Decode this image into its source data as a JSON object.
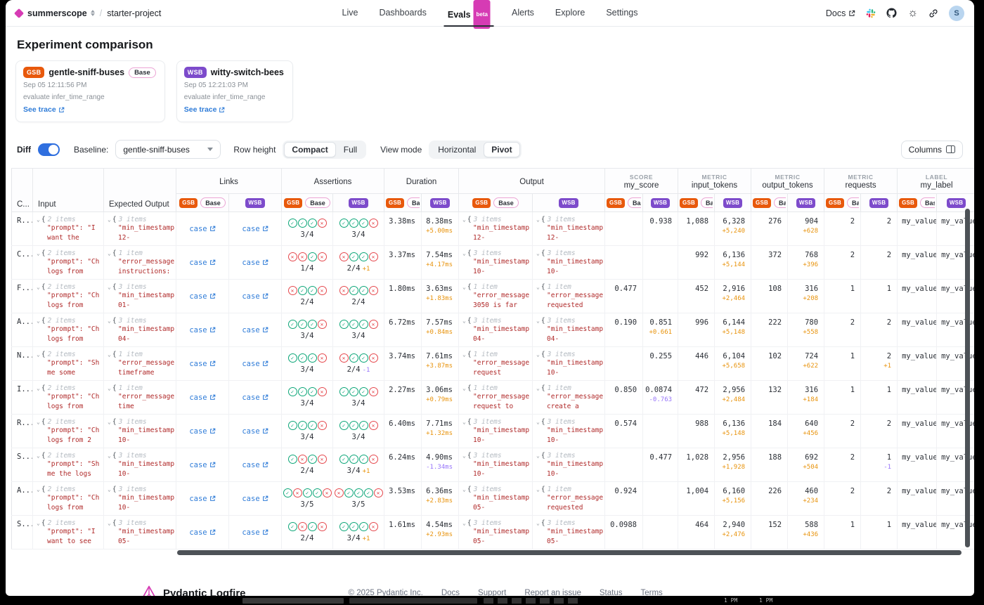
{
  "nav": {
    "org": "summerscope",
    "project": "starter-project",
    "items": [
      {
        "label": "Live"
      },
      {
        "label": "Dashboards"
      },
      {
        "label": "Evals",
        "badge": "beta",
        "active": true
      },
      {
        "label": "Alerts"
      },
      {
        "label": "Explore"
      },
      {
        "label": "Settings"
      }
    ],
    "docs_label": "Docs",
    "avatar": "S"
  },
  "page_title": "Experiment comparison",
  "experiments": [
    {
      "abbr": "GSB",
      "name": "gentle-sniff-buses",
      "base_label": "Base",
      "timestamp": "Sep 05 12:11:56 PM",
      "task": "evaluate infer_time_range",
      "trace_link": "See trace"
    },
    {
      "abbr": "WSB",
      "name": "witty-switch-bees",
      "timestamp": "Sep 05 12:21:03 PM",
      "task": "evaluate infer_time_range",
      "trace_link": "See trace"
    }
  ],
  "controls": {
    "diff_label": "Diff",
    "diff_on": true,
    "baseline_label": "Baseline:",
    "baseline_value": "gentle-sniff-buses",
    "row_height_label": "Row height",
    "row_height_options": [
      "Compact",
      "Full"
    ],
    "row_height_selected": "Compact",
    "view_mode_label": "View mode",
    "view_mode_options": [
      "Horizontal",
      "Pivot"
    ],
    "view_mode_selected": "Pivot",
    "columns_button": "Columns"
  },
  "table": {
    "badges": {
      "gsb": "GSB",
      "wsb": "WSB",
      "base": "Base"
    },
    "fixed_columns": [
      "C...",
      "Input",
      "Expected Output"
    ],
    "groups": [
      {
        "label": "Links",
        "clip": false
      },
      {
        "label": "Assertions",
        "clip": false
      },
      {
        "label": "Duration",
        "clip": true
      },
      {
        "label": "Output",
        "clip": false
      },
      {
        "kicker": "SCORE",
        "label": "my_score",
        "clip": true
      },
      {
        "kicker": "METRIC",
        "label": "input_tokens",
        "clip": true
      },
      {
        "kicker": "METRIC",
        "label": "output_tokens",
        "clip": true
      },
      {
        "kicker": "METRIC",
        "label": "requests",
        "clip": true
      },
      {
        "kicker": "LABEL",
        "label": "my_label",
        "clip": true
      }
    ],
    "link_text": "case",
    "rows": [
      {
        "case": "R...",
        "input": {
          "count": "2 items",
          "l1": "\"prompt\": \"I",
          "l2": "want the"
        },
        "expected": {
          "count": "3 items",
          "l1": "\"min_timestamp",
          "l2": "12-"
        },
        "asserts": {
          "g": "1110",
          "gs": "3/4",
          "gd": "",
          "w": "1110",
          "ws": "3/4",
          "wd": ""
        },
        "duration": {
          "gsb": "3.38ms",
          "wsb": "8.38ms",
          "delta": "+5.00ms"
        },
        "output_gsb": {
          "count": "3 items",
          "l1": "\"min_timestamp",
          "l2": "12-"
        },
        "output_wsb": {
          "count": "3 items",
          "l1": "\"min_timestamp",
          "l2": "12-"
        },
        "score": {
          "gsb": "",
          "wsb": "0.938",
          "delta": ""
        },
        "input_tokens": {
          "gsb": "1,088",
          "wsb": "6,328",
          "delta": "+5,240"
        },
        "output_tokens": {
          "gsb": "276",
          "wsb": "904",
          "delta": "+628"
        },
        "requests": {
          "gsb": "2",
          "wsb": "2",
          "delta": ""
        },
        "label": {
          "gsb": "my_value_",
          "wsb": "my_value_"
        }
      },
      {
        "case": "C...",
        "input": {
          "count": "2 items",
          "l1": "\"prompt\": \"Ch",
          "l2": "logs from"
        },
        "expected": {
          "count": "1 item",
          "l1": "\"error_message",
          "l2": "instructions:"
        },
        "asserts": {
          "g": "0010",
          "gs": "1/4",
          "gd": "",
          "w": "0110",
          "ws": "2/4",
          "wd": "+1"
        },
        "duration": {
          "gsb": "3.37ms",
          "wsb": "7.54ms",
          "delta": "+4.17ms"
        },
        "output_gsb": {
          "count": "3 items",
          "l1": "\"min_timestamp",
          "l2": "10-"
        },
        "output_wsb": {
          "count": "3 items",
          "l1": "\"min_timestamp",
          "l2": "10-"
        },
        "score": {
          "gsb": "",
          "wsb": "",
          "delta": ""
        },
        "input_tokens": {
          "gsb": "992",
          "wsb": "6,136",
          "delta": "+5,144"
        },
        "output_tokens": {
          "gsb": "372",
          "wsb": "768",
          "delta": "+396"
        },
        "requests": {
          "gsb": "2",
          "wsb": "2",
          "delta": ""
        },
        "label": {
          "gsb": "my_value_",
          "wsb": "my_value_"
        }
      },
      {
        "case": "F...",
        "input": {
          "count": "2 items",
          "l1": "\"prompt\": \"Ch",
          "l2": "logs from"
        },
        "expected": {
          "count": "3 items",
          "l1": "\"min_timestamp",
          "l2": "01-"
        },
        "asserts": {
          "g": "0110",
          "gs": "2/4",
          "gd": "",
          "w": "0110",
          "ws": "2/4",
          "wd": ""
        },
        "duration": {
          "gsb": "1.80ms",
          "wsb": "3.63ms",
          "delta": "+1.83ms"
        },
        "output_gsb": {
          "count": "1 item",
          "l1": "\"error_message",
          "l2": "3050 is far"
        },
        "output_wsb": {
          "count": "1 item",
          "l1": "\"error_message",
          "l2": "requested"
        },
        "score": {
          "gsb": "0.477",
          "wsb": "",
          "delta": ""
        },
        "input_tokens": {
          "gsb": "452",
          "wsb": "2,916",
          "delta": "+2,464"
        },
        "output_tokens": {
          "gsb": "108",
          "wsb": "316",
          "delta": "+208"
        },
        "requests": {
          "gsb": "1",
          "wsb": "1",
          "delta": ""
        },
        "label": {
          "gsb": "my_value_",
          "wsb": "my_value_"
        }
      },
      {
        "case": "A...",
        "input": {
          "count": "2 items",
          "l1": "\"prompt\": \"Ch",
          "l2": "logs from"
        },
        "expected": {
          "count": "3 items",
          "l1": "\"min_timestamp",
          "l2": "04-"
        },
        "asserts": {
          "g": "1110",
          "gs": "3/4",
          "gd": "",
          "w": "1110",
          "ws": "3/4",
          "wd": ""
        },
        "duration": {
          "gsb": "6.72ms",
          "wsb": "7.57ms",
          "delta": "+0.84ms"
        },
        "output_gsb": {
          "count": "3 items",
          "l1": "\"min_timestamp",
          "l2": "04-"
        },
        "output_wsb": {
          "count": "3 items",
          "l1": "\"min_timestamp",
          "l2": "04-"
        },
        "score": {
          "gsb": "0.190",
          "wsb": "0.851",
          "delta": "+0.661"
        },
        "input_tokens": {
          "gsb": "996",
          "wsb": "6,144",
          "delta": "+5,148"
        },
        "output_tokens": {
          "gsb": "222",
          "wsb": "780",
          "delta": "+558"
        },
        "requests": {
          "gsb": "2",
          "wsb": "2",
          "delta": ""
        },
        "label": {
          "gsb": "my_value_",
          "wsb": "my_value_"
        }
      },
      {
        "case": "N...",
        "input": {
          "count": "2 items",
          "l1": "\"prompt\": \"Sh",
          "l2": "me some"
        },
        "expected": {
          "count": "1 item",
          "l1": "\"error_message",
          "l2": "timeframe"
        },
        "asserts": {
          "g": "1110",
          "gs": "3/4",
          "gd": "",
          "w": "0110",
          "ws": "2/4",
          "wd": "-1"
        },
        "duration": {
          "gsb": "3.74ms",
          "wsb": "7.61ms",
          "delta": "+3.87ms"
        },
        "output_gsb": {
          "count": "1 item",
          "l1": "\"error_message",
          "l2": "request"
        },
        "output_wsb": {
          "count": "3 items",
          "l1": "\"min_timestamp",
          "l2": "10-"
        },
        "score": {
          "gsb": "",
          "wsb": "0.255",
          "delta": ""
        },
        "input_tokens": {
          "gsb": "446",
          "wsb": "6,104",
          "delta": "+5,658"
        },
        "output_tokens": {
          "gsb": "102",
          "wsb": "724",
          "delta": "+622"
        },
        "requests": {
          "gsb": "1",
          "wsb": "2",
          "delta": "+1"
        },
        "label": {
          "gsb": "my_value_",
          "wsb": "my_value_"
        }
      },
      {
        "case": "I...",
        "input": {
          "count": "2 items",
          "l1": "\"prompt\": \"Ch",
          "l2": "logs from"
        },
        "expected": {
          "count": "1 item",
          "l1": "\"error_message",
          "l2": "time"
        },
        "asserts": {
          "g": "1110",
          "gs": "3/4",
          "gd": "",
          "w": "1110",
          "ws": "3/4",
          "wd": ""
        },
        "duration": {
          "gsb": "2.27ms",
          "wsb": "3.06ms",
          "delta": "+0.79ms"
        },
        "output_gsb": {
          "count": "1 item",
          "l1": "\"error_message",
          "l2": "request to"
        },
        "output_wsb": {
          "count": "1 item",
          "l1": "\"error_message",
          "l2": "create a"
        },
        "score": {
          "gsb": "0.850",
          "wsb": "0.0874",
          "delta": "-0.763"
        },
        "input_tokens": {
          "gsb": "472",
          "wsb": "2,956",
          "delta": "+2,484"
        },
        "output_tokens": {
          "gsb": "132",
          "wsb": "316",
          "delta": "+184"
        },
        "requests": {
          "gsb": "1",
          "wsb": "1",
          "delta": ""
        },
        "label": {
          "gsb": "my_value_",
          "wsb": "my_value_"
        }
      },
      {
        "case": "R...",
        "input": {
          "count": "2 items",
          "l1": "\"prompt\": \"Ch",
          "l2": "logs from 2"
        },
        "expected": {
          "count": "3 items",
          "l1": "\"min_timestamp",
          "l2": "10-"
        },
        "asserts": {
          "g": "1110",
          "gs": "3/4",
          "gd": "",
          "w": "1110",
          "ws": "3/4",
          "wd": ""
        },
        "duration": {
          "gsb": "6.40ms",
          "wsb": "7.71ms",
          "delta": "+1.32ms"
        },
        "output_gsb": {
          "count": "3 items",
          "l1": "\"min_timestamp",
          "l2": "10-"
        },
        "output_wsb": {
          "count": "3 items",
          "l1": "\"min_timestamp",
          "l2": "10-"
        },
        "score": {
          "gsb": "0.574",
          "wsb": "",
          "delta": ""
        },
        "input_tokens": {
          "gsb": "988",
          "wsb": "6,136",
          "delta": "+5,148"
        },
        "output_tokens": {
          "gsb": "184",
          "wsb": "640",
          "delta": "+456"
        },
        "requests": {
          "gsb": "2",
          "wsb": "2",
          "delta": ""
        },
        "label": {
          "gsb": "my_value_",
          "wsb": "my_value_"
        }
      },
      {
        "case": "S...",
        "input": {
          "count": "2 items",
          "l1": "\"prompt\": \"Sh",
          "l2": "me the logs"
        },
        "expected": {
          "count": "3 items",
          "l1": "\"min_timestamp",
          "l2": "10-"
        },
        "asserts": {
          "g": "1010",
          "gs": "2/4",
          "gd": "",
          "w": "1110",
          "ws": "3/4",
          "wd": "+1"
        },
        "duration": {
          "gsb": "6.24ms",
          "wsb": "4.90ms",
          "delta": "-1.34ms"
        },
        "output_gsb": {
          "count": "3 items",
          "l1": "\"min_timestamp",
          "l2": "10-"
        },
        "output_wsb": {
          "count": "3 items",
          "l1": "\"min_timestamp",
          "l2": "10-"
        },
        "score": {
          "gsb": "",
          "wsb": "0.477",
          "delta": ""
        },
        "input_tokens": {
          "gsb": "1,028",
          "wsb": "2,956",
          "delta": "+1,928"
        },
        "output_tokens": {
          "gsb": "188",
          "wsb": "692",
          "delta": "+504"
        },
        "requests": {
          "gsb": "2",
          "wsb": "1",
          "delta": "-1"
        },
        "label": {
          "gsb": "my_value_",
          "wsb": "my_value_"
        }
      },
      {
        "case": "A...",
        "input": {
          "count": "2 items",
          "l1": "\"prompt\": \"Ch",
          "l2": "logs from"
        },
        "expected": {
          "count": "3 items",
          "l1": "\"min_timestamp",
          "l2": "10-"
        },
        "asserts": {
          "g": "10110",
          "gs": "3/5",
          "gd": "",
          "w": "01110",
          "ws": "3/5",
          "wd": ""
        },
        "duration": {
          "gsb": "3.53ms",
          "wsb": "6.36ms",
          "delta": "+2.83ms"
        },
        "output_gsb": {
          "count": "3 items",
          "l1": "\"min_timestamp",
          "l2": "05-"
        },
        "output_wsb": {
          "count": "1 item",
          "l1": "\"error_message",
          "l2": "requested"
        },
        "score": {
          "gsb": "0.924",
          "wsb": "",
          "delta": ""
        },
        "input_tokens": {
          "gsb": "1,004",
          "wsb": "6,160",
          "delta": "+5,156"
        },
        "output_tokens": {
          "gsb": "226",
          "wsb": "460",
          "delta": "+234"
        },
        "requests": {
          "gsb": "2",
          "wsb": "2",
          "delta": ""
        },
        "label": {
          "gsb": "my_value_",
          "wsb": "my_value_"
        }
      },
      {
        "case": "S...",
        "input": {
          "count": "2 items",
          "l1": "\"prompt\": \"I",
          "l2": "want to see"
        },
        "expected": {
          "count": "3 items",
          "l1": "\"min_timestamp",
          "l2": "05-"
        },
        "asserts": {
          "g": "1010",
          "gs": "2/4",
          "gd": "",
          "w": "1110",
          "ws": "3/4",
          "wd": "+1"
        },
        "duration": {
          "gsb": "1.61ms",
          "wsb": "4.54ms",
          "delta": "+2.93ms"
        },
        "output_gsb": {
          "count": "3 items",
          "l1": "\"min_timestamp",
          "l2": "05-"
        },
        "output_wsb": {
          "count": "3 items",
          "l1": "\"min_timestamp",
          "l2": "05-"
        },
        "score": {
          "gsb": "0.0988",
          "wsb": "",
          "delta": ""
        },
        "input_tokens": {
          "gsb": "464",
          "wsb": "2,940",
          "delta": "+2,476"
        },
        "output_tokens": {
          "gsb": "152",
          "wsb": "588",
          "delta": "+436"
        },
        "requests": {
          "gsb": "1",
          "wsb": "1",
          "delta": ""
        },
        "label": {
          "gsb": "my_value_",
          "wsb": "my_value_"
        }
      }
    ]
  },
  "footer": {
    "brand": "Pydantic Logfire",
    "links": [
      "© 2025 Pydantic Inc.",
      "Docs",
      "Support",
      "Report an issue",
      "Status",
      "Terms"
    ]
  },
  "taskbar": {
    "times": [
      "1 PM",
      "1 PM"
    ]
  },
  "colors": {
    "accent_magenta": "#d63bb4",
    "gsb_orange": "#e8590c",
    "wsb_purple": "#7d4bcb",
    "link_blue": "#2f7cd8",
    "pass_green": "#0ca678",
    "fail_red": "#e5484d",
    "delta_positive_orange": "#e8930c",
    "delta_negative_purple": "#9775fa"
  }
}
